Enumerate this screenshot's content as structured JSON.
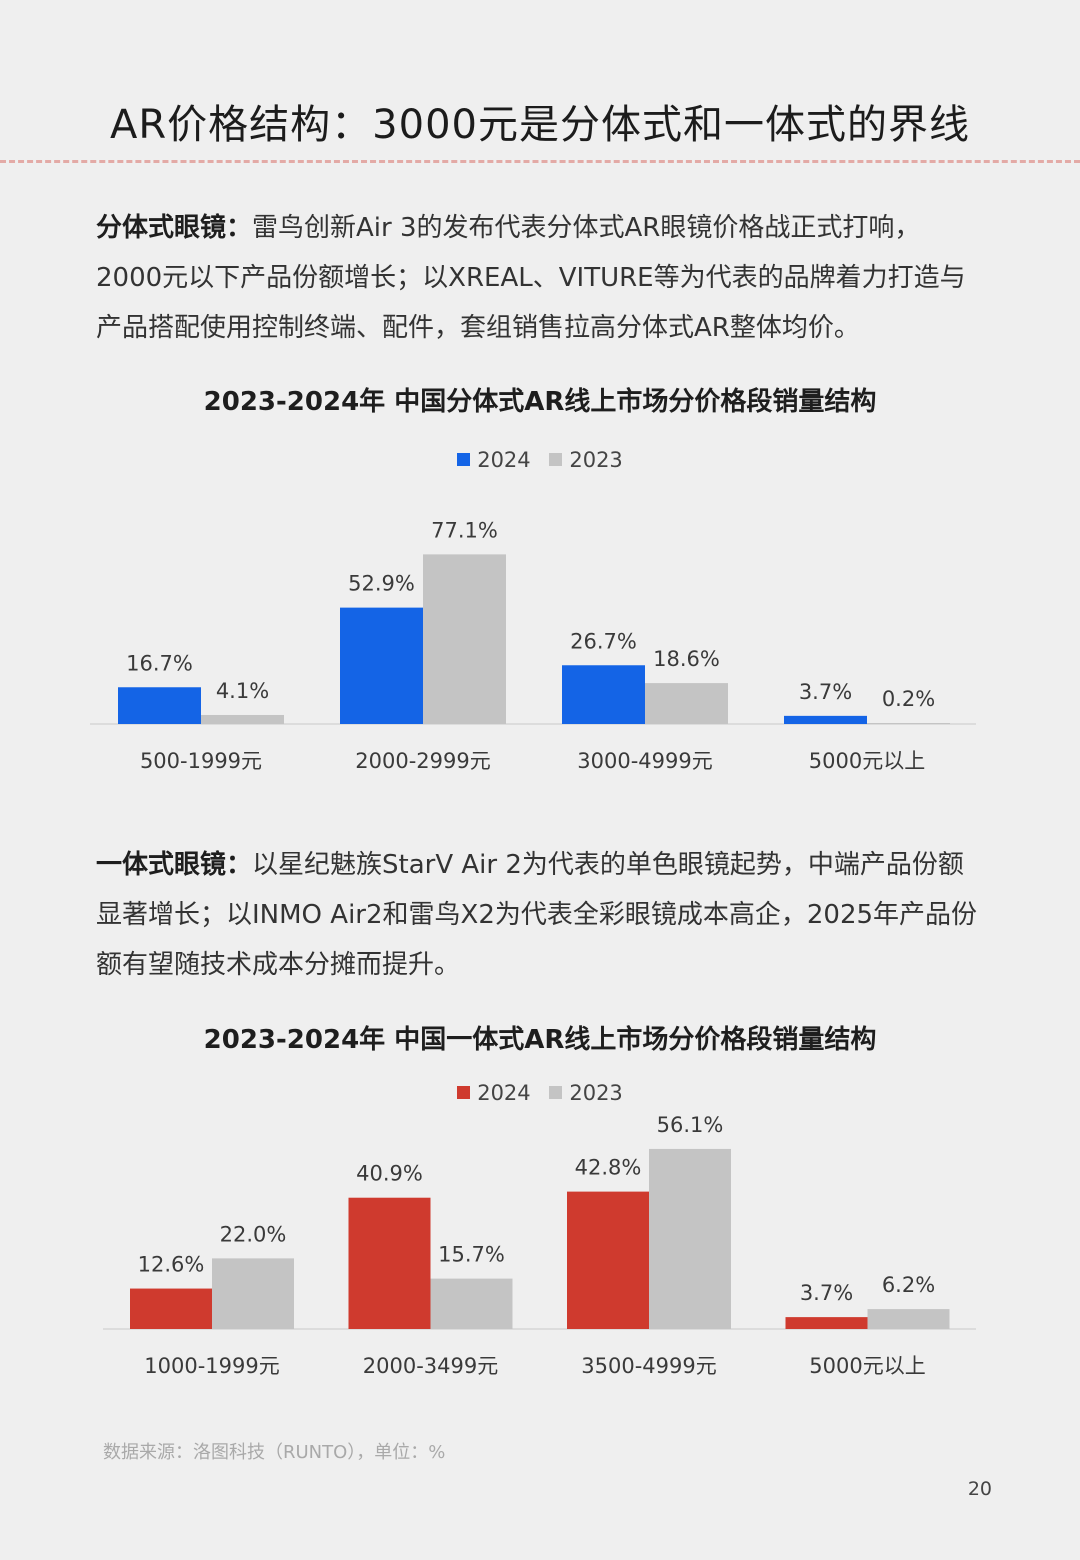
{
  "page": {
    "title": "AR价格结构：3000元是分体式和一体式的界线",
    "source": "数据来源：洛图科技（RUNTO），单位：%",
    "page_number": "20"
  },
  "section1": {
    "lead": "分体式眼镜：",
    "text": "雷鸟创新Air 3的发布代表分体式AR眼镜价格战正式打响，2000元以下产品份额增长；以XREAL、VITURE等为代表的品牌着力打造与产品搭配使用控制终端、配件，套组销售拉高分体式AR整体均价。"
  },
  "section2": {
    "lead": "一体式眼镜：",
    "text": "以星纪魅族StarV Air 2为代表的单色眼镜起势，中端产品份额显著增长；以INMO Air2和雷鸟X2为代表全彩眼镜成本高企，2025年产品份额有望随技术成本分摊而提升。"
  },
  "chart_data": [
    {
      "type": "bar",
      "title": "2023-2024年 中国分体式AR线上市场分价格段销量结构",
      "categories": [
        "500-1999元",
        "2000-2999元",
        "3000-4999元",
        "5000元以上"
      ],
      "series": [
        {
          "name": "2024",
          "values": [
            16.7,
            52.9,
            26.7,
            3.7
          ],
          "labels": [
            "16.7%",
            "52.9%",
            "26.7%",
            "3.7%"
          ],
          "color": "#1464e6"
        },
        {
          "name": "2023",
          "values": [
            4.1,
            77.1,
            18.6,
            0.2
          ],
          "labels": [
            "4.1%",
            "77.1%",
            "18.6%",
            "0.2%"
          ],
          "color": "#c4c4c4"
        }
      ],
      "legend_position": "top-center",
      "ylim": [
        0,
        80
      ],
      "grid": false
    },
    {
      "type": "bar",
      "title": "2023-2024年 中国一体式AR线上市场分价格段销量结构",
      "categories": [
        "1000-1999元",
        "2000-3499元",
        "3500-4999元",
        "5000元以上"
      ],
      "series": [
        {
          "name": "2024",
          "values": [
            12.6,
            40.9,
            42.8,
            3.7
          ],
          "labels": [
            "12.6%",
            "40.9%",
            "42.8%",
            "3.7%"
          ],
          "color": "#cf3a2e"
        },
        {
          "name": "2023",
          "values": [
            22.0,
            15.7,
            56.1,
            6.2
          ],
          "labels": [
            "22.0%",
            "15.7%",
            "56.1%",
            "6.2%"
          ],
          "color": "#c4c4c4"
        }
      ],
      "legend_position": "top-center",
      "ylim": [
        0,
        80
      ],
      "grid": false
    }
  ]
}
